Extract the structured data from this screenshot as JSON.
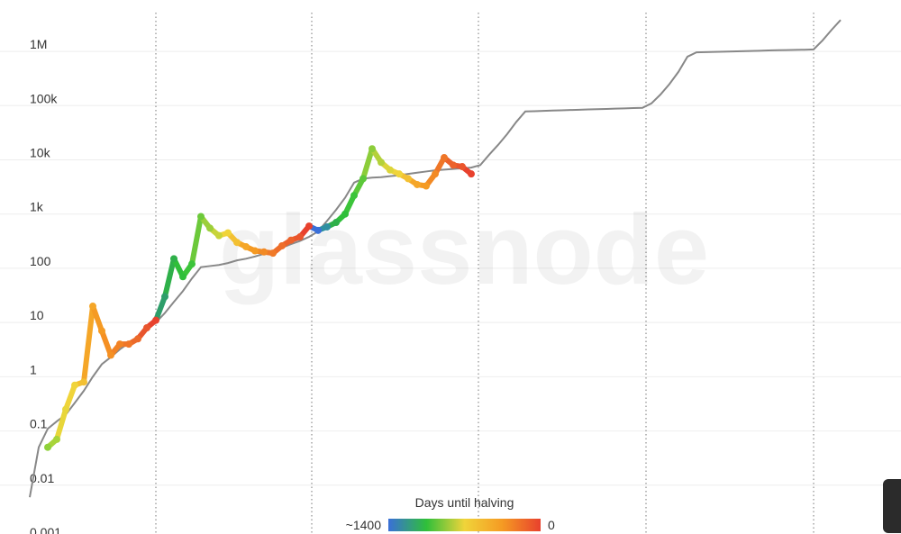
{
  "chart_data": {
    "type": "line",
    "watermark": "glassnode",
    "log_scale": true,
    "grid": true,
    "ylim": [
      0.001,
      5000000
    ],
    "yticks": [
      0.001,
      0.01,
      0.1,
      1,
      10,
      100,
      {
        "value": 1000,
        "label": "1k"
      },
      {
        "value": 10000,
        "label": "10k"
      },
      {
        "value": 100000,
        "label": "100k"
      },
      {
        "value": 1000000,
        "label": "1M"
      }
    ],
    "categories": [
      null,
      null,
      null,
      null,
      null,
      null,
      null,
      null,
      null,
      null,
      null,
      null,
      null,
      null,
      null,
      null,
      null,
      null,
      null,
      null,
      null,
      null,
      null,
      null,
      null,
      null,
      null,
      null,
      null,
      null,
      null,
      null,
      null,
      null,
      null,
      null,
      null,
      null,
      null,
      null,
      null,
      null,
      null,
      null,
      null,
      null,
      null,
      null,
      null,
      null,
      null,
      null,
      null,
      null,
      null,
      null,
      null,
      null,
      null,
      null,
      null,
      null,
      null,
      null,
      null,
      null,
      null,
      null,
      null,
      null,
      null,
      null,
      null,
      null,
      null,
      null,
      null,
      null,
      null,
      null,
      null,
      null,
      null,
      null,
      null,
      null,
      null,
      null,
      null,
      null,
      null
    ],
    "series": [
      {
        "color": "#888888",
        "values": [
          0.006,
          0.05,
          0.11,
          0.15,
          0.2,
          0.33,
          0.55,
          1,
          1.7,
          2.3,
          3.2,
          4.2,
          5.5,
          7.5,
          10,
          15,
          24,
          38,
          65,
          105,
          110,
          115,
          125,
          140,
          150,
          165,
          185,
          210,
          240,
          280,
          320,
          380,
          480,
          750,
          1200,
          2000,
          3800,
          4500,
          4700,
          4800,
          5000,
          5200,
          5500,
          5800,
          6100,
          6400,
          6600,
          6800,
          7000,
          7200,
          8000,
          12500,
          19000,
          30000,
          50000,
          78000,
          79000,
          80000,
          81000,
          82000,
          83000,
          84000,
          85000,
          86000,
          87000,
          88000,
          89000,
          90000,
          91000,
          110000,
          160000,
          250000,
          420000,
          800000,
          960000,
          970000,
          980000,
          990000,
          1000000,
          1010000,
          1020000,
          1030000,
          1040000,
          1050000,
          1060000,
          1070000,
          1075000,
          1090000,
          1600000,
          2500000,
          3800000
        ]
      },
      {
        "colors": [
          null,
          null,
          "#8fd13a",
          "#a8d43a",
          "#e8d63a",
          "#f0d43a",
          "#f3c032",
          "#f5a628",
          "#f59a23",
          "#f59023",
          "#f28325",
          "#f07628",
          "#ec6a2b",
          "#e8552d",
          "#e8412d",
          "#2e9e6a",
          "#2fb04a",
          "#2fbf3a",
          "#3cc43a",
          "#6cc93a",
          "#9ccf3a",
          "#c8d43a",
          "#f0d43a",
          "#f3c032",
          "#f5a628",
          "#f59a23",
          "#f28a25",
          "#f07a28",
          "#ee6e2a",
          "#ec622b",
          "#ea552c",
          "#e8412d",
          "#3a6fd8",
          "#2e8fa0",
          "#2fb04a",
          "#2fbf3a",
          "#3cc43a",
          "#5cc83a",
          "#8ccd3a",
          "#b4d13a",
          "#dcd53a",
          "#f0d43a",
          "#f3c032",
          "#f5a628",
          "#f59a23",
          "#f28a25",
          "#ef7628",
          "#ec622b",
          "#ea552c",
          "#e8412d",
          null,
          null,
          null,
          null,
          null,
          null,
          null,
          null,
          null,
          null,
          null,
          null,
          null,
          null,
          null,
          null,
          null,
          null,
          null,
          null,
          null,
          null,
          null,
          null,
          null,
          null,
          null,
          null,
          null,
          null,
          null,
          null,
          null,
          null,
          null,
          null,
          null,
          null,
          null,
          null,
          null
        ],
        "values": [
          null,
          null,
          0.05,
          0.07,
          0.25,
          0.7,
          0.8,
          20,
          7,
          2.5,
          4,
          4,
          5,
          8,
          11,
          30,
          150,
          70,
          120,
          900,
          550,
          400,
          450,
          300,
          250,
          210,
          200,
          190,
          260,
          330,
          380,
          600,
          500,
          580,
          700,
          1000,
          2200,
          4500,
          16000,
          9000,
          6500,
          5500,
          4500,
          3500,
          3300,
          5500,
          11000,
          8000,
          7500,
          5500,
          null,
          null,
          null,
          null,
          null,
          null,
          null,
          null,
          null,
          null,
          null,
          null,
          null,
          null,
          null,
          null,
          null,
          null,
          null,
          null,
          null,
          null,
          null,
          null,
          null,
          null,
          null,
          null,
          null,
          null,
          null,
          null,
          null,
          null,
          null,
          null,
          null,
          null,
          null,
          null,
          null
        ]
      }
    ],
    "colorbar": {
      "title": "Days until halving",
      "clim": [
        1400,
        0
      ],
      "ticks": [
        {
          "value": 1400,
          "label": "~1400"
        },
        0
      ],
      "colors": [
        "#3a6fd8",
        "#2fbf3a",
        "#f0d43a",
        "#f59a23",
        "#e8412d"
      ]
    }
  }
}
